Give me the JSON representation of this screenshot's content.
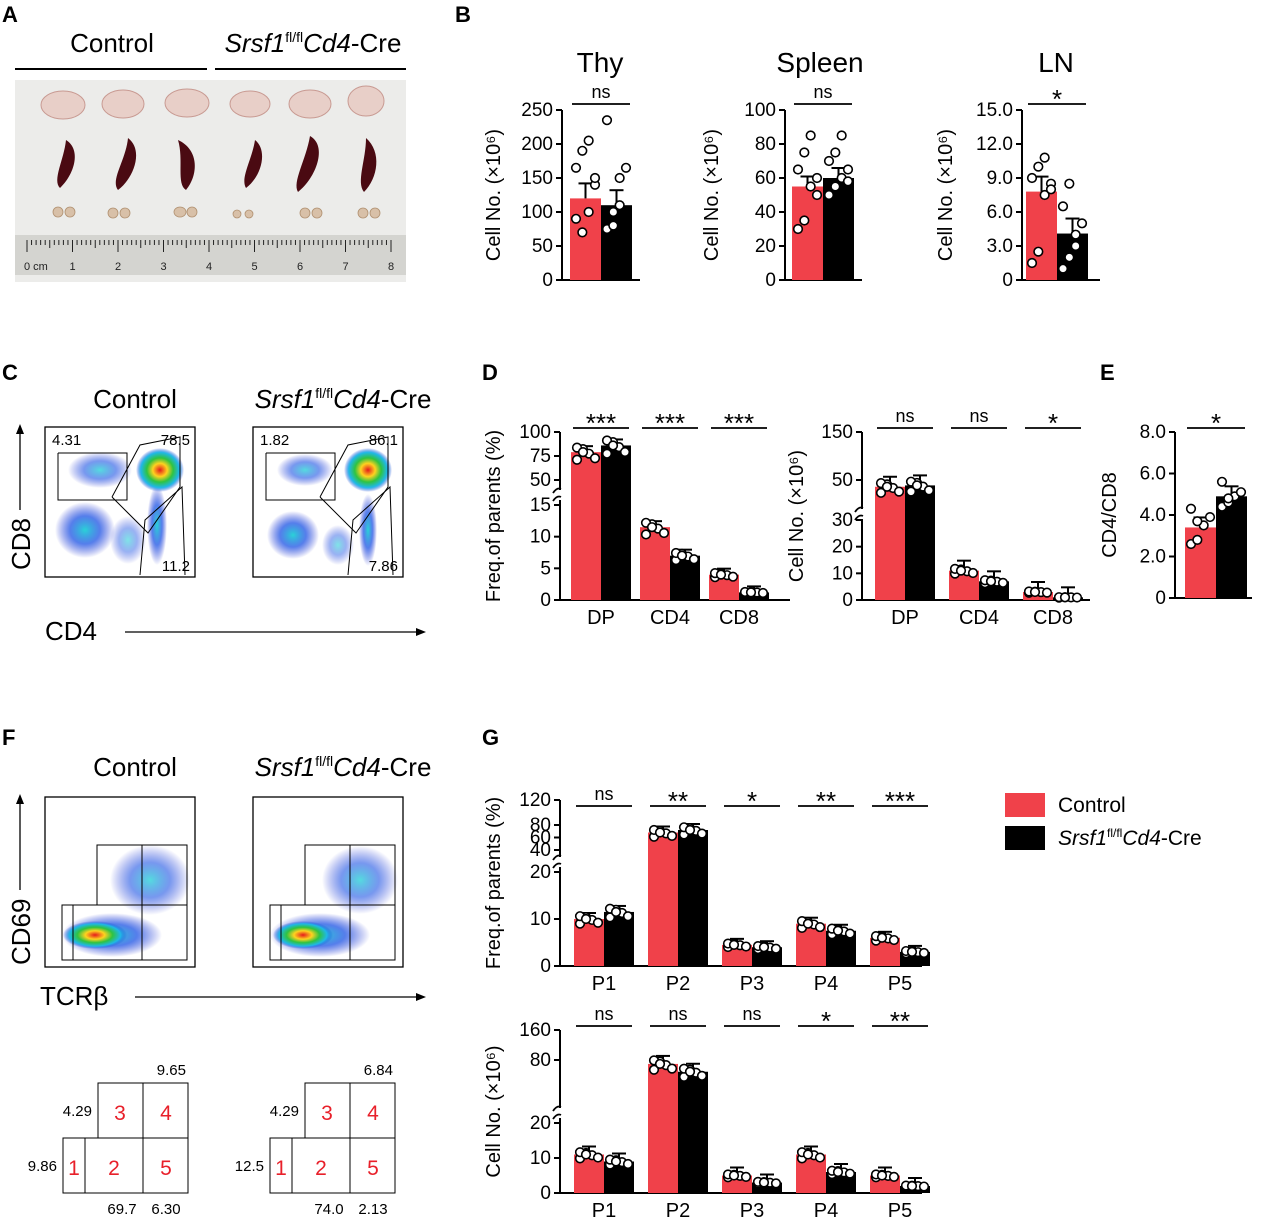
{
  "colors": {
    "control": "#f0414a",
    "ko": "#000000",
    "organ_bg": "#ececea",
    "ruler": "#d4d4d0"
  },
  "panels": {
    "A": "A",
    "B": "B",
    "C": "C",
    "D": "D",
    "E": "E",
    "F": "F",
    "G": "G"
  },
  "genotype": {
    "control": "Control",
    "ko_gene": "Srsf1",
    "ko_sup": "fl/fl",
    "ko_driver": "Cd4",
    "ko_suffix": "-Cre"
  },
  "ruler": {
    "unit": "0 cm",
    "marks": [
      "1",
      "2",
      "3",
      "4",
      "5",
      "6",
      "7",
      "8"
    ]
  },
  "flow": {
    "c_xlabel": "CD4",
    "c_ylabel": "CD8",
    "c_control": {
      "top_left": "4.31",
      "top_right": "78.5",
      "bottom_right": "11.2"
    },
    "c_ko": {
      "top_left": "1.82",
      "top_right": "86.1",
      "bottom_right": "7.86"
    },
    "f_xlabel": "TCRβ",
    "f_ylabel": "CD69"
  },
  "gates": {
    "control": {
      "g4": "9.65",
      "g3": "4.29",
      "g1": "9.86",
      "g2": "69.7",
      "g5": "6.30"
    },
    "ko": {
      "g4": "6.84",
      "g3": "4.29",
      "g1": "12.5",
      "g2": "74.0",
      "g5": "2.13"
    },
    "numbers": [
      "1",
      "2",
      "3",
      "4",
      "5"
    ]
  },
  "legend": {
    "control": "Control",
    "ko": "Srsf1fl/flCd4-Cre"
  },
  "chart_data": [
    {
      "id": "B-thy",
      "type": "bar",
      "title": "Thy",
      "ylabel": "Cell No. (×10⁶)",
      "ylim": [
        0,
        250
      ],
      "yticks": [
        "0",
        "50",
        "100",
        "150",
        "200",
        "250"
      ],
      "significance": [
        "ns"
      ],
      "series": [
        {
          "name": "Control",
          "values": [
            120
          ],
          "points": [
            90,
            70,
            100,
            140,
            165,
            190,
            205,
            150
          ]
        },
        {
          "name": "Srsf1fl/flCd4-Cre",
          "values": [
            110
          ],
          "points": [
            75,
            100,
            150,
            165,
            235,
            80,
            110
          ]
        }
      ]
    },
    {
      "id": "B-spleen",
      "type": "bar",
      "title": "Spleen",
      "ylabel": "Cell No. (×10⁶)",
      "ylim": [
        0,
        100
      ],
      "yticks": [
        "0",
        "20",
        "40",
        "60",
        "80",
        "100"
      ],
      "significance": [
        "ns"
      ],
      "series": [
        {
          "name": "Control",
          "values": [
            55
          ],
          "points": [
            30,
            35,
            55,
            60,
            65,
            75,
            85,
            50
          ]
        },
        {
          "name": "Srsf1fl/flCd4-Cre",
          "values": [
            60
          ],
          "points": [
            50,
            55,
            60,
            65,
            70,
            75,
            85,
            58
          ]
        }
      ]
    },
    {
      "id": "B-ln",
      "type": "bar",
      "title": "LN",
      "ylabel": "Cell No. (×10⁶)",
      "ylim": [
        0,
        15
      ],
      "yticks": [
        "0",
        "3.0",
        "6.0",
        "9.0",
        "12.0",
        "15.0"
      ],
      "significance": [
        "*"
      ],
      "series": [
        {
          "name": "Control",
          "values": [
            7.8
          ],
          "points": [
            1.5,
            2.5,
            7.5,
            8.5,
            9.0,
            10.0,
            10.8,
            8.0
          ]
        },
        {
          "name": "Srsf1fl/flCd4-Cre",
          "values": [
            4.1
          ],
          "points": [
            1.0,
            2.0,
            3.0,
            5.0,
            6.5,
            8.5,
            4.0
          ]
        }
      ]
    },
    {
      "id": "D-freq",
      "type": "bar",
      "ylabel": "Freq.of parents (%)",
      "categories": [
        "DP",
        "CD4",
        "CD8"
      ],
      "yticks": [
        "0",
        "5",
        "10",
        "15",
        "50",
        "75",
        "100"
      ],
      "significance": [
        "***",
        "***",
        "***"
      ],
      "series": [
        {
          "name": "Control",
          "values": [
            79,
            11.5,
            4.0
          ]
        },
        {
          "name": "Srsf1fl/flCd4-Cre",
          "values": [
            86,
            7.0,
            1.2
          ]
        }
      ]
    },
    {
      "id": "D-cellno",
      "type": "bar",
      "ylabel": "Cell No. (×10⁶)",
      "categories": [
        "DP",
        "CD4",
        "CD8"
      ],
      "yticks": [
        "0",
        "10",
        "20",
        "30",
        "50",
        "150"
      ],
      "significance": [
        "ns",
        "ns",
        "*"
      ],
      "series": [
        {
          "name": "Control",
          "values": [
            45,
            11,
            3
          ]
        },
        {
          "name": "Srsf1fl/flCd4-Cre",
          "values": [
            46,
            7,
            1
          ]
        }
      ]
    },
    {
      "id": "E",
      "type": "bar",
      "ylabel": "CD4/CD8",
      "ylim": [
        0,
        8.0
      ],
      "yticks": [
        "0",
        "2.0",
        "4.0",
        "6.0",
        "8.0"
      ],
      "significance": [
        "*"
      ],
      "series": [
        {
          "name": "Control",
          "values": [
            3.4
          ],
          "points": [
            2.6,
            2.8,
            3.5,
            3.9,
            4.3,
            3.7
          ]
        },
        {
          "name": "Srsf1fl/flCd4-Cre",
          "values": [
            4.9
          ],
          "points": [
            4.4,
            4.6,
            4.9,
            5.1,
            5.6,
            4.8
          ]
        }
      ]
    },
    {
      "id": "G-freq",
      "type": "bar",
      "ylabel": "Freq.of parents (%)",
      "categories": [
        "P1",
        "P2",
        "P3",
        "P4",
        "P5"
      ],
      "yticks": [
        "0",
        "10",
        "20",
        "40",
        "60",
        "80",
        "120"
      ],
      "significance": [
        "ns",
        "**",
        "*",
        "**",
        "***"
      ],
      "series": [
        {
          "name": "Control",
          "values": [
            10,
            68,
            4.5,
            9,
            6
          ]
        },
        {
          "name": "Srsf1fl/flCd4-Cre",
          "values": [
            11.5,
            72,
            4,
            7.5,
            3
          ]
        }
      ]
    },
    {
      "id": "G-cellno",
      "type": "bar",
      "ylabel": "Cell No. (×10⁶)",
      "categories": [
        "P1",
        "P2",
        "P3",
        "P4",
        "P5"
      ],
      "yticks": [
        "0",
        "10",
        "20",
        "80",
        "160"
      ],
      "significance": [
        "ns",
        "ns",
        "ns",
        "*",
        "**"
      ],
      "series": [
        {
          "name": "Control",
          "values": [
            11,
            75,
            5,
            11,
            5
          ]
        },
        {
          "name": "Srsf1fl/flCd4-Cre",
          "values": [
            9,
            65,
            3,
            6,
            2
          ]
        }
      ]
    }
  ]
}
